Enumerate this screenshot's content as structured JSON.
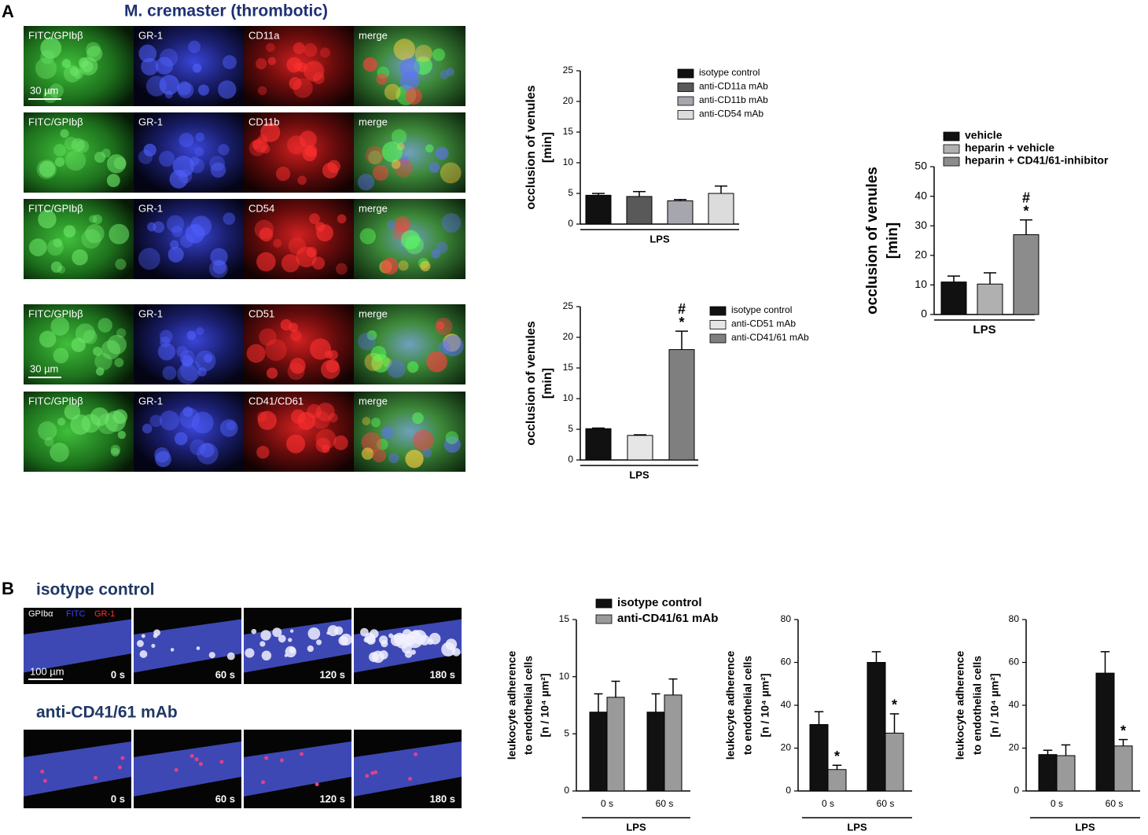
{
  "figure": {
    "panel_a": "A",
    "title_a": "M. cremaster (thrombotic)",
    "panel_b": "B",
    "rows_a": [
      [
        "FITC/GPIbβ",
        "GR-1",
        "CD11a",
        "merge"
      ],
      [
        "FITC/GPIbβ",
        "GR-1",
        "CD11b",
        "merge"
      ],
      [
        "FITC/GPIbβ",
        "GR-1",
        "CD54",
        "merge"
      ],
      [
        "FITC/GPIbβ",
        "GR-1",
        "CD51",
        "merge"
      ],
      [
        "FITC/GPIbβ",
        "GR-1",
        "CD41/CD61",
        "merge"
      ]
    ],
    "scale_a": "30 µm",
    "rows_b": [
      "isotype control",
      "anti-CD41/61 mAb"
    ],
    "channels_b": [
      "GPIbα",
      "FITC",
      "GR-1"
    ],
    "scale_b": "100 µm",
    "timepoints": [
      "0 s",
      "60 s",
      "120 s",
      "180 s"
    ]
  },
  "chart_data": [
    {
      "type": "bar",
      "y_label": [
        "occlusion of venules",
        "[min]"
      ],
      "x_label": "LPS",
      "ylim": [
        0,
        25
      ],
      "yticks": [
        0,
        5,
        10,
        15,
        20,
        25
      ],
      "series": [
        {
          "name": "isotype control",
          "color": "#111111",
          "values": [
            4.7
          ],
          "errors": [
            0.3
          ]
        },
        {
          "name": "anti-CD11a mAb",
          "color": "#595959",
          "values": [
            4.5
          ],
          "errors": [
            0.8
          ]
        },
        {
          "name": "anti-CD11b mAb",
          "color": "#a6a6ae",
          "values": [
            3.8
          ],
          "errors": [
            0.2
          ]
        },
        {
          "name": "anti-CD54 mAb",
          "color": "#dcdcdc",
          "values": [
            5.0
          ],
          "errors": [
            1.2
          ]
        }
      ]
    },
    {
      "type": "bar",
      "y_label": [
        "occlusion of venules",
        "[min]"
      ],
      "x_label": "LPS",
      "ylim": [
        0,
        25
      ],
      "yticks": [
        0,
        5,
        10,
        15,
        20,
        25
      ],
      "series": [
        {
          "name": "isotype control",
          "color": "#111111",
          "values": [
            5.1
          ],
          "errors": [
            0.1
          ]
        },
        {
          "name": "anti-CD51 mAb",
          "color": "#e6e6e6",
          "values": [
            4.0
          ],
          "errors": [
            0.1
          ]
        },
        {
          "name": "anti-CD41/61 mAb",
          "color": "#7f7f7f",
          "values": [
            18
          ],
          "errors": [
            3
          ],
          "marks": [
            [
              "#",
              "*"
            ]
          ]
        }
      ]
    },
    {
      "type": "bar",
      "y_label": [
        "occlusion of venules",
        "[min]"
      ],
      "x_label": "LPS",
      "ylim": [
        0,
        50
      ],
      "yticks": [
        0,
        10,
        20,
        30,
        40,
        50
      ],
      "series": [
        {
          "name": "vehicle",
          "color": "#111111",
          "values": [
            11
          ],
          "errors": [
            2
          ]
        },
        {
          "name": "heparin + vehicle",
          "color": "#b0b0b0",
          "values": [
            10.3
          ],
          "errors": [
            3.8
          ]
        },
        {
          "name": "heparin + CD41/61-inhibitor",
          "color": "#8c8c8c",
          "values": [
            27
          ],
          "errors": [
            5
          ],
          "marks": [
            [
              "#",
              "*"
            ]
          ]
        }
      ]
    },
    {
      "type": "bar",
      "y_label": [
        "leukocyte adherence",
        "to endothelial cells",
        "[n / 10⁴ µm²]"
      ],
      "x_label": "LPS",
      "categories": [
        "0 s",
        "60 s"
      ],
      "ylim": [
        0,
        15
      ],
      "yticks": [
        0,
        5,
        10,
        15
      ],
      "series": [
        {
          "name": "isotype control",
          "color": "#111111",
          "values": [
            6.9,
            6.9
          ],
          "errors": [
            1.6,
            1.6
          ]
        },
        {
          "name": "anti-CD41/61 mAb",
          "color": "#9a9a9a",
          "values": [
            8.2,
            8.4
          ],
          "errors": [
            1.4,
            1.4
          ]
        }
      ]
    },
    {
      "type": "bar",
      "y_label": [
        "leukocyte adherence",
        "to endothelial cells",
        "[n / 10⁴ µm²]"
      ],
      "x_label": "LPS",
      "categories": [
        "0 s",
        "60 s"
      ],
      "ylim": [
        0,
        80
      ],
      "yticks": [
        0,
        20,
        40,
        60,
        80
      ],
      "series": [
        {
          "color": "#111111",
          "values": [
            31,
            60
          ],
          "errors": [
            6,
            5
          ]
        },
        {
          "color": "#9a9a9a",
          "values": [
            10,
            27
          ],
          "errors": [
            2,
            9
          ],
          "marks": [
            [
              "*"
            ],
            [
              "*"
            ]
          ]
        }
      ]
    },
    {
      "type": "bar",
      "y_label": [
        "leukocyte adherence",
        "to endothelial cells",
        "[n / 10⁴ µm²]"
      ],
      "x_label": "LPS",
      "categories": [
        "0 s",
        "60 s"
      ],
      "ylim": [
        0,
        80
      ],
      "yticks": [
        0,
        20,
        40,
        60,
        80
      ],
      "series": [
        {
          "color": "#111111",
          "values": [
            17,
            55
          ],
          "errors": [
            2,
            10
          ]
        },
        {
          "color": "#9a9a9a",
          "values": [
            16.5,
            21
          ],
          "errors": [
            5,
            3
          ],
          "marks": [
            null,
            [
              "*"
            ]
          ]
        }
      ]
    }
  ]
}
